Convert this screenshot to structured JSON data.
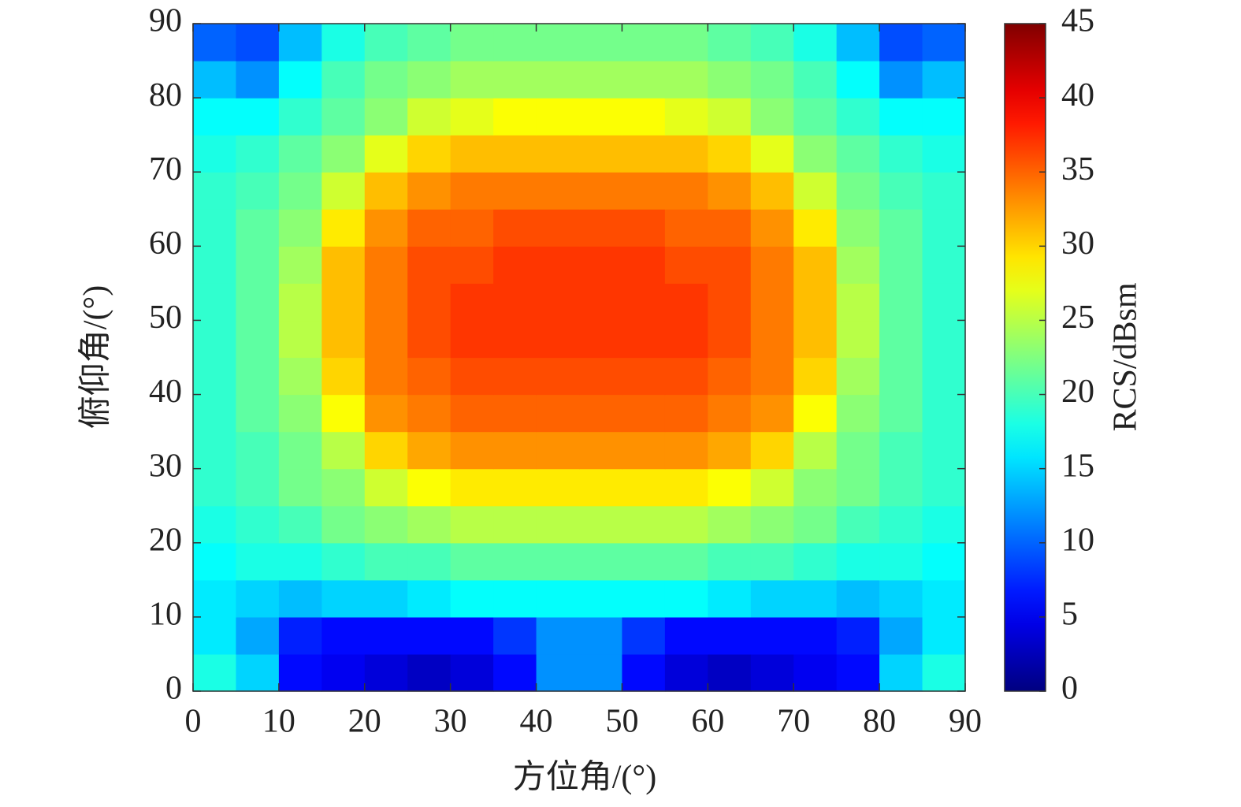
{
  "chart_data": {
    "type": "heatmap",
    "xlabel": "方位角/(°)",
    "ylabel": "俯仰角/(°)",
    "colorbar_label": "RCS/dBsm",
    "colormap": "jet",
    "x": [
      2.5,
      7.5,
      12.5,
      17.5,
      22.5,
      27.5,
      32.5,
      37.5,
      42.5,
      47.5,
      52.5,
      57.5,
      62.5,
      67.5,
      72.5,
      77.5,
      82.5,
      87.5
    ],
    "y": [
      2.5,
      7.5,
      12.5,
      17.5,
      22.5,
      27.5,
      32.5,
      37.5,
      42.5,
      47.5,
      52.5,
      57.5,
      62.5,
      67.5,
      72.5,
      77.5,
      82.5,
      87.5
    ],
    "values": [
      [
        18,
        15,
        6,
        5,
        4,
        3,
        4,
        6,
        12,
        12,
        6,
        4,
        3,
        4,
        5,
        6,
        15,
        18
      ],
      [
        16,
        13,
        7,
        6,
        6,
        6,
        6,
        8,
        12,
        12,
        8,
        6,
        6,
        6,
        6,
        7,
        13,
        16
      ],
      [
        16,
        15,
        14,
        15,
        15,
        16,
        17,
        17,
        17,
        17,
        17,
        17,
        16,
        15,
        15,
        14,
        15,
        16
      ],
      [
        17,
        18,
        18,
        19,
        20,
        20,
        21,
        21,
        21,
        21,
        21,
        21,
        20,
        20,
        19,
        18,
        18,
        17
      ],
      [
        18,
        19,
        20,
        22,
        23,
        24,
        25,
        25,
        25,
        25,
        25,
        25,
        24,
        23,
        22,
        20,
        19,
        18
      ],
      [
        19,
        20,
        22,
        23,
        26,
        28,
        29,
        29,
        29,
        29,
        29,
        29,
        28,
        26,
        23,
        22,
        20,
        19
      ],
      [
        19,
        20,
        22,
        25,
        30,
        32,
        33,
        33,
        33,
        33,
        33,
        33,
        32,
        30,
        25,
        22,
        20,
        19
      ],
      [
        19,
        21,
        23,
        28,
        33,
        34,
        35,
        35,
        35,
        35,
        35,
        35,
        34,
        33,
        28,
        23,
        21,
        19
      ],
      [
        19,
        21,
        24,
        30,
        34,
        35,
        36,
        36,
        36,
        36,
        36,
        36,
        35,
        34,
        30,
        24,
        21,
        19
      ],
      [
        19,
        21,
        25,
        31,
        34,
        36,
        37,
        37,
        37,
        37,
        37,
        37,
        36,
        34,
        31,
        25,
        21,
        19
      ],
      [
        19,
        21,
        25,
        31,
        34,
        36,
        37,
        37,
        37,
        37,
        37,
        37,
        36,
        34,
        31,
        25,
        21,
        19
      ],
      [
        19,
        21,
        24,
        31,
        34,
        36,
        36,
        37,
        37,
        37,
        37,
        36,
        36,
        34,
        31,
        24,
        21,
        19
      ],
      [
        19,
        21,
        23,
        29,
        33,
        35,
        35,
        36,
        36,
        36,
        36,
        35,
        35,
        33,
        29,
        23,
        21,
        19
      ],
      [
        19,
        20,
        22,
        26,
        31,
        33,
        34,
        34,
        34,
        34,
        34,
        34,
        33,
        31,
        26,
        22,
        20,
        19
      ],
      [
        18,
        19,
        21,
        23,
        27,
        30,
        31,
        31,
        31,
        31,
        31,
        31,
        30,
        27,
        23,
        21,
        19,
        18
      ],
      [
        17,
        17,
        19,
        21,
        23,
        26,
        27,
        28,
        28,
        28,
        28,
        27,
        26,
        23,
        21,
        19,
        17,
        17
      ],
      [
        14,
        12,
        17,
        20,
        22,
        23,
        24,
        24,
        24,
        24,
        24,
        24,
        23,
        22,
        20,
        17,
        12,
        14
      ],
      [
        10,
        9,
        14,
        18,
        20,
        21,
        22,
        22,
        22,
        22,
        22,
        22,
        21,
        20,
        18,
        14,
        9,
        10
      ]
    ],
    "xlim": [
      0,
      90
    ],
    "ylim": [
      0,
      90
    ],
    "zlim": [
      0,
      45
    ],
    "xticks": [
      0,
      10,
      20,
      30,
      40,
      50,
      60,
      70,
      80,
      90
    ],
    "yticks": [
      0,
      10,
      20,
      30,
      40,
      50,
      60,
      70,
      80,
      90
    ],
    "zticks": [
      0,
      5,
      10,
      15,
      20,
      25,
      30,
      35,
      40,
      45
    ]
  }
}
